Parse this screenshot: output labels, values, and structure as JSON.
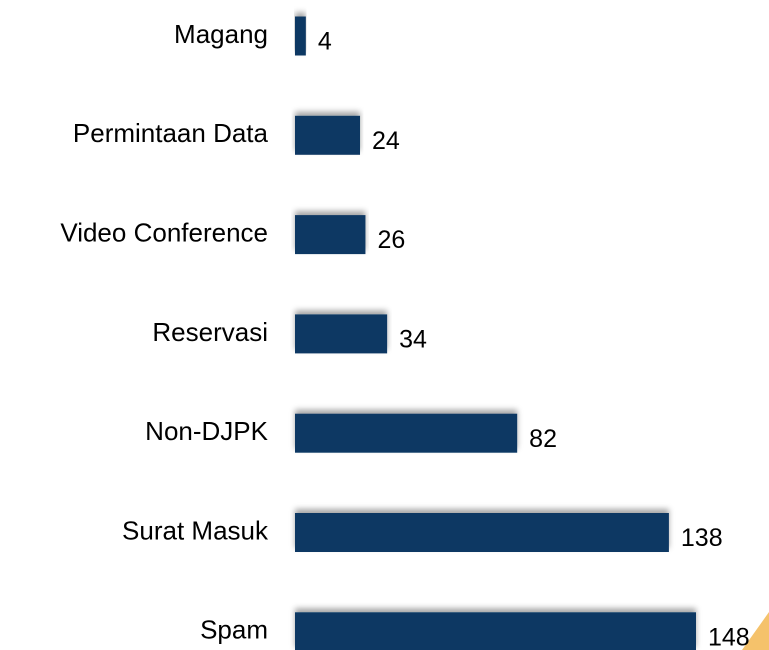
{
  "chart_data": {
    "type": "bar",
    "orientation": "horizontal",
    "categories": [
      "Magang",
      "Permintaan Data",
      "Video Conference",
      "Reservasi",
      "Non-DJPK",
      "Surat Masuk",
      "Spam"
    ],
    "values": [
      4,
      24,
      26,
      34,
      82,
      138,
      148
    ],
    "color": "#0f3864"
  }
}
